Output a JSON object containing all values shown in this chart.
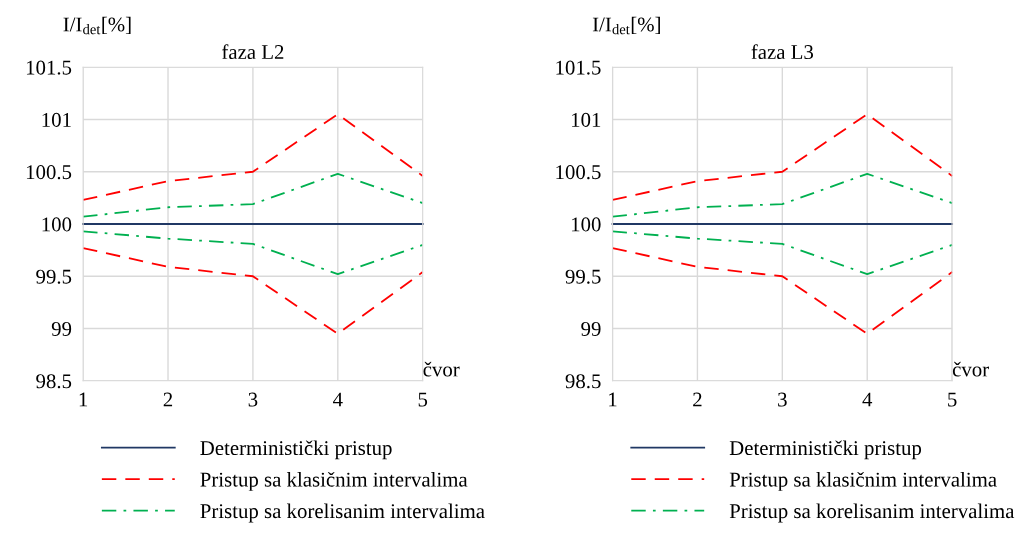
{
  "chart_data": [
    {
      "type": "line",
      "title": "faza L2",
      "ylabel": "I/I$_{det}$[%]",
      "xlabel": "čvor",
      "x": [
        1,
        2,
        3,
        4,
        5
      ],
      "xlim": [
        1,
        5
      ],
      "xticks": [
        1,
        2,
        3,
        4,
        5
      ],
      "ylim": [
        98.5,
        101.5
      ],
      "yticks": [
        98.5,
        99,
        99.5,
        100,
        100.5,
        101,
        101.5
      ],
      "grid": true,
      "legend": "bottom",
      "series": [
        {
          "name": "Deterministički pristup",
          "color": "#203864",
          "line_style": "solid",
          "values": [
            100,
            100,
            100,
            100,
            100
          ]
        },
        {
          "name": "Pristup sa klasičnim intervalima",
          "color": "#ff0000",
          "line_style": "dashed",
          "values": [
            100.23,
            100.41,
            100.5,
            101.05,
            100.46
          ]
        },
        {
          "color": "#ff0000",
          "line_style": "dashed",
          "values": [
            99.77,
            99.59,
            99.5,
            98.95,
            99.54
          ]
        },
        {
          "name": "Pristup sa korelisanim intervalima",
          "color": "#00b050",
          "line_style": "dashdot",
          "values": [
            100.07,
            100.16,
            100.19,
            100.48,
            100.2
          ]
        },
        {
          "color": "#00b050",
          "line_style": "dashdot",
          "values": [
            99.93,
            99.86,
            99.81,
            99.52,
            99.8
          ]
        }
      ]
    },
    {
      "type": "line",
      "title": "faza L3",
      "ylabel": "I/I$_{det}$[%]",
      "xlabel": "čvor",
      "x": [
        1,
        2,
        3,
        4,
        5
      ],
      "xlim": [
        1,
        5
      ],
      "xticks": [
        1,
        2,
        3,
        4,
        5
      ],
      "ylim": [
        98.5,
        101.5
      ],
      "yticks": [
        98.5,
        99,
        99.5,
        100,
        100.5,
        101,
        101.5
      ],
      "grid": true,
      "legend": "bottom",
      "series": [
        {
          "name": "Deterministički pristup",
          "color": "#203864",
          "line_style": "solid",
          "values": [
            100,
            100,
            100,
            100,
            100
          ]
        },
        {
          "name": "Pristup sa klasičnim intervalima",
          "color": "#ff0000",
          "line_style": "dashed",
          "values": [
            100.23,
            100.41,
            100.5,
            101.05,
            100.46
          ]
        },
        {
          "color": "#ff0000",
          "line_style": "dashed",
          "values": [
            99.77,
            99.59,
            99.5,
            98.95,
            99.54
          ]
        },
        {
          "name": "Pristup sa korelisanim intervalima",
          "color": "#00b050",
          "line_style": "dashdot",
          "values": [
            100.07,
            100.16,
            100.19,
            100.48,
            100.2
          ]
        },
        {
          "color": "#00b050",
          "line_style": "dashdot",
          "values": [
            99.93,
            99.86,
            99.81,
            99.52,
            99.8
          ]
        }
      ]
    }
  ]
}
